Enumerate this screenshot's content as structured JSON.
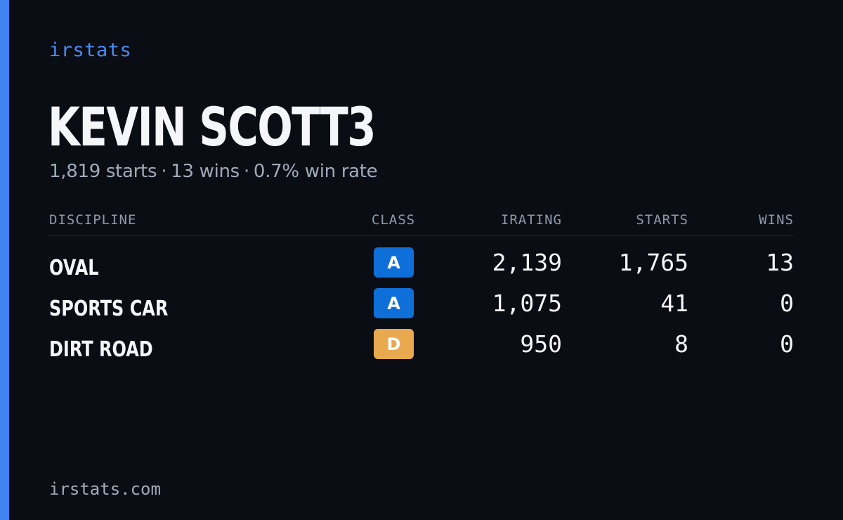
{
  "brand": "irstats",
  "player": {
    "name": "KEVIN SCOTT3",
    "starts": "1,819 starts",
    "wins": "13 wins",
    "win_rate": "0.7% win rate",
    "separator": "·"
  },
  "table": {
    "headers": {
      "discipline": "DISCIPLINE",
      "class": "CLASS",
      "irating": "IRATING",
      "starts": "STARTS",
      "wins": "WINS"
    },
    "rows": [
      {
        "discipline": "OVAL",
        "class": "A",
        "irating": "2,139",
        "starts": "1,765",
        "wins": "13"
      },
      {
        "discipline": "SPORTS CAR",
        "class": "A",
        "irating": "1,075",
        "starts": "41",
        "wins": "0"
      },
      {
        "discipline": "DIRT ROAD",
        "class": "D",
        "irating": "950",
        "starts": "8",
        "wins": "0"
      }
    ]
  },
  "footer": "irstats.com",
  "colors": {
    "accent": "#3f82f0",
    "background": "#0a0d14",
    "class_a": "#0f6fd8",
    "class_d": "#e8a94f"
  }
}
